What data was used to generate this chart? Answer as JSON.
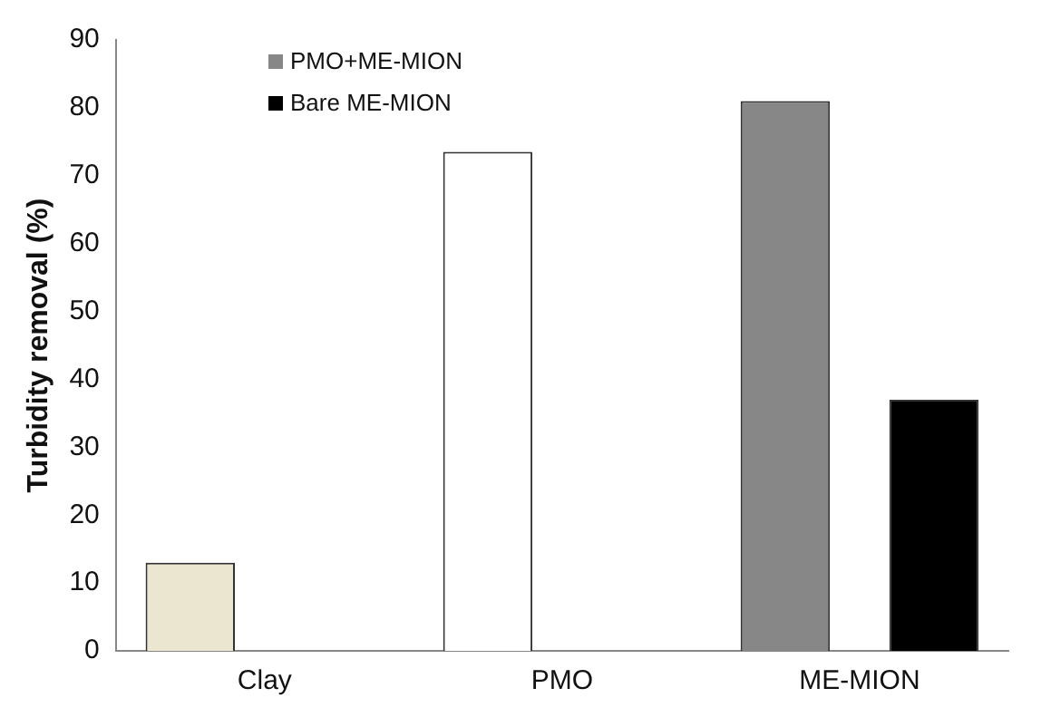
{
  "chart_data": {
    "type": "bar",
    "ylabel": "Turbidity removal (%)",
    "categories": [
      "Clay",
      "PMO",
      "ME-MION"
    ],
    "series": [
      {
        "colors": [
          "#ebe6cf",
          "#ffffff",
          null
        ],
        "values": [
          13,
          73.5,
          null
        ]
      },
      {
        "name": "PMO+ME-MION",
        "color": "#878787",
        "values": [
          null,
          null,
          81
        ]
      },
      {
        "name": "Bare ME-MION",
        "color": "#000000",
        "values": [
          null,
          null,
          37
        ]
      }
    ],
    "ylim": [
      0,
      90
    ],
    "yticks": [
      0,
      10,
      20,
      30,
      40,
      50,
      60,
      70,
      80,
      90
    ],
    "grid": false,
    "legend": "top left"
  }
}
